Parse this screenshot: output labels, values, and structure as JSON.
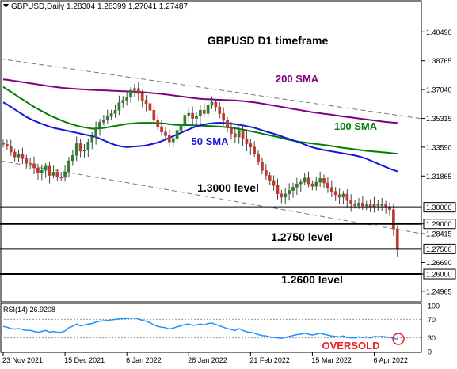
{
  "header": {
    "symbol_line": "GBPUSD,Daily  1.28304 1.28399 1.27041 1.27487"
  },
  "chart_data": [
    {
      "type": "candlestick",
      "title": "GBPUSD D1 timeframe",
      "ylim": [
        1.2477,
        1.4183
      ],
      "y_ticks": [
        "1.40490",
        "1.38765",
        "1.37040",
        "1.35315",
        "1.33590",
        "1.31865",
        "1.30000",
        "1.29000",
        "1.28415",
        "1.27500",
        "1.26690",
        "1.26000",
        "1.24965"
      ],
      "highlighted_ticks": [
        "1.30000",
        "1.29000",
        "1.27500",
        "1.26000"
      ],
      "x_ticks": [
        "23 Nov 2021",
        "15 Dec 2021",
        "6 Jan 2022",
        "28 Jan 2022",
        "21 Feb 2022",
        "15 Mar 2022",
        "6 Apr 2022"
      ],
      "x_tick_index": [
        0,
        16,
        32,
        48,
        64,
        80,
        96
      ],
      "closes": [
        1.3376,
        1.3365,
        1.333,
        1.33,
        1.3315,
        1.329,
        1.3262,
        1.326,
        1.3235,
        1.3205,
        1.322,
        1.3246,
        1.319,
        1.321,
        1.318,
        1.3178,
        1.321,
        1.3278,
        1.331,
        1.338,
        1.3335,
        1.3342,
        1.339,
        1.342,
        1.3475,
        1.3508,
        1.3522,
        1.3542,
        1.356,
        1.358,
        1.3625,
        1.364,
        1.366,
        1.37,
        1.371,
        1.368,
        1.364,
        1.362,
        1.358,
        1.352,
        1.3482,
        1.345,
        1.3428,
        1.339,
        1.3412,
        1.346,
        1.3495,
        1.355,
        1.3562,
        1.3531,
        1.3545,
        1.358,
        1.356,
        1.361,
        1.3628,
        1.36,
        1.356,
        1.352,
        1.348,
        1.344,
        1.342,
        1.346,
        1.341,
        1.338,
        1.336,
        1.332,
        1.327,
        1.322,
        1.319,
        1.316,
        1.313,
        1.308,
        1.306,
        1.308,
        1.31,
        1.312,
        1.314,
        1.315,
        1.3175,
        1.314,
        1.3125,
        1.315,
        1.3172,
        1.3145,
        1.3118,
        1.3095,
        1.3075,
        1.306,
        1.3079,
        1.304,
        1.302,
        1.301,
        1.3025,
        1.3008,
        1.3015,
        1.2998,
        1.3019,
        1.301,
        1.302,
        1.3,
        1.2985,
        1.287,
        1.2749
      ],
      "series": [
        {
          "name": "200 SMA",
          "color": "#800080",
          "values": [
            1.3765,
            1.3762,
            1.3759,
            1.3755,
            1.3752,
            1.3748,
            1.3745,
            1.3741,
            1.3738,
            1.3734,
            1.3731,
            1.3727,
            1.3724,
            1.3721,
            1.3718,
            1.3715,
            1.3713,
            1.3711,
            1.3709,
            1.3707,
            1.3706,
            1.3705,
            1.3703,
            1.3702,
            1.3701,
            1.37,
            1.3699,
            1.3698,
            1.3697,
            1.3696,
            1.3695,
            1.3694,
            1.3693,
            1.3692,
            1.3691,
            1.369,
            1.3688,
            1.3686,
            1.3684,
            1.3682,
            1.368,
            1.3678,
            1.3675,
            1.3672,
            1.3669,
            1.3666,
            1.3663,
            1.366,
            1.3657,
            1.3654,
            1.3651,
            1.3649,
            1.3647,
            1.3646,
            1.3645,
            1.3644,
            1.3643,
            1.3642,
            1.3641,
            1.364,
            1.3639,
            1.3637,
            1.3635,
            1.3633,
            1.363,
            1.3627,
            1.3624,
            1.362,
            1.3616,
            1.3612,
            1.3608,
            1.3604,
            1.36,
            1.3596,
            1.3592,
            1.3588,
            1.3584,
            1.358,
            1.3576,
            1.3572,
            1.3568,
            1.3565,
            1.3562,
            1.3559,
            1.3556,
            1.3553,
            1.355,
            1.3546,
            1.3543,
            1.354,
            1.3537,
            1.3534,
            1.3531,
            1.3528,
            1.3525,
            1.3522,
            1.3519,
            1.3516,
            1.3513,
            1.351,
            1.3508,
            1.3506,
            1.3504
          ]
        },
        {
          "name": "100 SMA",
          "color": "#008000",
          "values": [
            1.372,
            1.3705,
            1.369,
            1.3675,
            1.366,
            1.3645,
            1.363,
            1.3615,
            1.36,
            1.3587,
            1.3575,
            1.3562,
            1.355,
            1.354,
            1.353,
            1.352,
            1.351,
            1.3502,
            1.3495,
            1.3488,
            1.3482,
            1.3478,
            1.3474,
            1.347,
            1.347,
            1.3472,
            1.3474,
            1.3478,
            1.3482,
            1.3486,
            1.349,
            1.3494,
            1.3498,
            1.35,
            1.3502,
            1.3504,
            1.3505,
            1.3505,
            1.3505,
            1.3504,
            1.3503,
            1.3502,
            1.35,
            1.3497,
            1.3494,
            1.3492,
            1.3491,
            1.3491,
            1.3491,
            1.349,
            1.3489,
            1.3488,
            1.3487,
            1.3486,
            1.3485,
            1.3484,
            1.3482,
            1.348,
            1.3478,
            1.3475,
            1.3472,
            1.3468,
            1.3464,
            1.346,
            1.3455,
            1.345,
            1.3445,
            1.344,
            1.3435,
            1.343,
            1.3425,
            1.342,
            1.3414,
            1.3408,
            1.3403,
            1.3398,
            1.3394,
            1.339,
            1.3387,
            1.3384,
            1.3381,
            1.3378,
            1.3375,
            1.3372,
            1.3369,
            1.3366,
            1.3362,
            1.3358,
            1.3355,
            1.3352,
            1.3349,
            1.3346,
            1.3343,
            1.334,
            1.3337,
            1.3335,
            1.3333,
            1.3331,
            1.3329,
            1.3327,
            1.3325,
            1.3322,
            1.332
          ]
        },
        {
          "name": "50 SMA",
          "color": "#1414dc",
          "values": [
            1.3627,
            1.3615,
            1.36,
            1.3585,
            1.357,
            1.3555,
            1.354,
            1.3528,
            1.3518,
            1.3508,
            1.3498,
            1.349,
            1.3482,
            1.3475,
            1.347,
            1.3465,
            1.346,
            1.3455,
            1.345,
            1.3445,
            1.344,
            1.3435,
            1.343,
            1.3425,
            1.342,
            1.341,
            1.34,
            1.339,
            1.338,
            1.3372,
            1.3366,
            1.3362,
            1.336,
            1.3361,
            1.3363,
            1.3365,
            1.3367,
            1.337,
            1.3375,
            1.338,
            1.3387,
            1.3395,
            1.3405,
            1.3415,
            1.3425,
            1.3435,
            1.3445,
            1.3455,
            1.3465,
            1.3475,
            1.3483,
            1.349,
            1.3495,
            1.3499,
            1.3502,
            1.3504,
            1.3505,
            1.3504,
            1.3502,
            1.35,
            1.3497,
            1.3493,
            1.3489,
            1.3485,
            1.348,
            1.3475,
            1.3468,
            1.346,
            1.3453,
            1.3446,
            1.344,
            1.3432,
            1.3424,
            1.3416,
            1.3408,
            1.34,
            1.3392,
            1.3384,
            1.3375,
            1.3366,
            1.3358,
            1.3352,
            1.3347,
            1.3342,
            1.3338,
            1.3334,
            1.333,
            1.3326,
            1.3322,
            1.3318,
            1.3314,
            1.3309,
            1.3304,
            1.3298,
            1.329,
            1.328,
            1.327,
            1.326,
            1.325,
            1.324,
            1.323,
            1.3222,
            1.3214
          ]
        }
      ],
      "levels": [
        {
          "value": 1.3,
          "label": "1.3000 level"
        },
        {
          "value": 1.29,
          "label": ""
        },
        {
          "value": 1.275,
          "label": "1.2750 level"
        },
        {
          "value": 1.26,
          "label": "1.2600 level"
        }
      ],
      "grid": false,
      "legend": "none"
    },
    {
      "type": "line",
      "title": "RSI(14) 26.9208",
      "ylim": [
        0,
        100
      ],
      "y_ticks": [
        "100",
        "70",
        "30",
        "0"
      ],
      "reference_lines": [
        70,
        30
      ],
      "annotation": "OVERSOLD",
      "series": [
        {
          "name": "RSI(14)",
          "color": "#1e90ff",
          "values": [
            55,
            53,
            50,
            49,
            50,
            48,
            46,
            46,
            44,
            42,
            44,
            46,
            42,
            44,
            42,
            42,
            45,
            52,
            55,
            60,
            56,
            58,
            60,
            61,
            64,
            66,
            67,
            68,
            69,
            70,
            71,
            72,
            72,
            73,
            73,
            71,
            68,
            66,
            63,
            58,
            55,
            53,
            52,
            49,
            51,
            54,
            56,
            59,
            60,
            57,
            58,
            60,
            58,
            61,
            62,
            59,
            56,
            53,
            50,
            48,
            46,
            50,
            46,
            43,
            42,
            40,
            37,
            35,
            34,
            32,
            31,
            30,
            29,
            31,
            33,
            35,
            37,
            38,
            40,
            38,
            36,
            38,
            40,
            38,
            36,
            34,
            33,
            32,
            34,
            31,
            30,
            30,
            32,
            31,
            32,
            30,
            33,
            32,
            33,
            32,
            31,
            29,
            27
          ]
        }
      ]
    }
  ]
}
